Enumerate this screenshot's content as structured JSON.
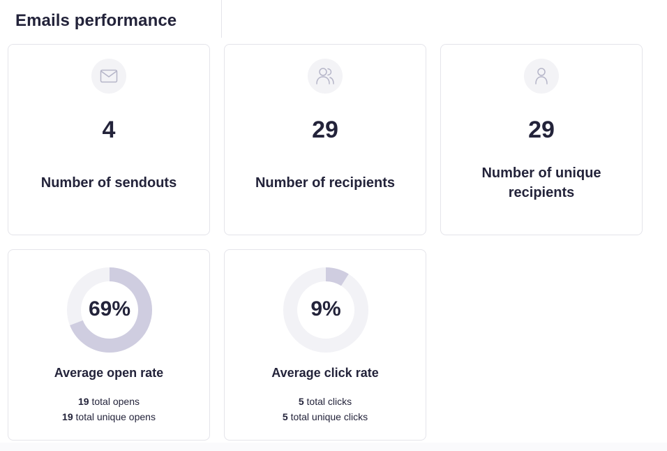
{
  "page": {
    "title": "Emails performance"
  },
  "colors": {
    "text": "#23233a",
    "border": "#e4e4ea",
    "icon_bg": "#f3f3f6",
    "icon_stroke": "#b5b5c8",
    "ring_track": "#f2f2f6",
    "ring_fill": "#cfcde0"
  },
  "stats": [
    {
      "icon": "envelope-icon",
      "value": "4",
      "label": "Number of sendouts"
    },
    {
      "icon": "users-icon",
      "value": "29",
      "label": "Number of recipients"
    },
    {
      "icon": "user-icon",
      "value": "29",
      "label": "Number of unique recipients"
    }
  ],
  "rates": [
    {
      "percent": 69,
      "value": "69%",
      "label": "Average open rate",
      "line1_count": "19",
      "line1_text": "total opens",
      "line2_count": "19",
      "line2_text": "total unique opens"
    },
    {
      "percent": 9,
      "value": "9%",
      "label": "Average click rate",
      "line1_count": "5",
      "line1_text": "total clicks",
      "line2_count": "5",
      "line2_text": "total unique clicks"
    }
  ]
}
